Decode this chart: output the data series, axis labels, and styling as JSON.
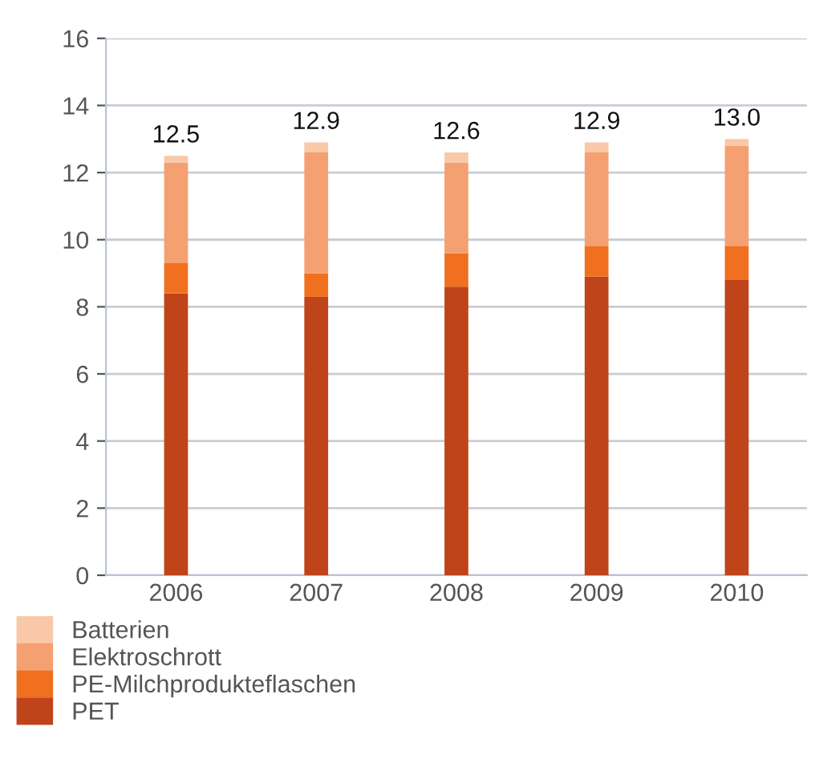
{
  "chart_data": {
    "type": "bar",
    "stacked": true,
    "categories": [
      "2006",
      "2007",
      "2008",
      "2009",
      "2010"
    ],
    "series": [
      {
        "name": "PET",
        "color": "#c0441a",
        "values": [
          8.4,
          8.3,
          8.6,
          8.9,
          8.8
        ]
      },
      {
        "name": "PE-Milchprodukteflaschen",
        "color": "#f07020",
        "values": [
          0.9,
          0.7,
          1.0,
          0.9,
          1.0
        ]
      },
      {
        "name": "Elektroschrott",
        "color": "#f5a070",
        "values": [
          3.0,
          3.6,
          2.7,
          2.8,
          3.0
        ]
      },
      {
        "name": "Batterien",
        "color": "#f9c8a8",
        "values": [
          0.2,
          0.3,
          0.3,
          0.3,
          0.2
        ]
      }
    ],
    "totals": [
      "12.5",
      "12.9",
      "12.6",
      "12.9",
      "13.0"
    ],
    "ylim": [
      0,
      16
    ],
    "yticks": [
      0,
      2,
      4,
      6,
      8,
      10,
      12,
      14,
      16
    ],
    "grid": "y",
    "legend": "bottom"
  }
}
